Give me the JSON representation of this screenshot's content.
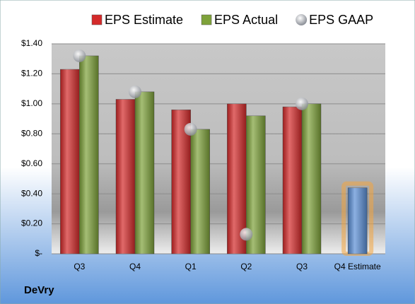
{
  "chart_data": {
    "type": "bar",
    "footer": "DeVry",
    "categories": [
      "Q3",
      "Q4",
      "Q1",
      "Q2",
      "Q3",
      "Q4 Estimate"
    ],
    "series": [
      {
        "name": "EPS Estimate",
        "color": "#d42a2a",
        "values": [
          1.23,
          1.03,
          0.96,
          1.0,
          0.98,
          null
        ]
      },
      {
        "name": "EPS Actual",
        "color": "#7ea23a",
        "values": [
          1.32,
          1.08,
          0.83,
          0.92,
          1.0,
          null
        ]
      },
      {
        "name": "EPS GAAP",
        "color": "#b8bcc4",
        "marker": "circle",
        "values": [
          1.32,
          1.08,
          0.83,
          0.13,
          1.0,
          null
        ]
      }
    ],
    "forecast": {
      "color": "#5b8fd6",
      "glow": "#f4a640",
      "values": [
        null,
        null,
        null,
        null,
        null,
        0.44
      ]
    },
    "ylim": [
      0,
      1.4
    ],
    "yticks": [
      {
        "value": 0,
        "label": "$-"
      },
      {
        "value": 0.2,
        "label": "$0.20"
      },
      {
        "value": 0.4,
        "label": "$0.40"
      },
      {
        "value": 0.6,
        "label": "$0.60"
      },
      {
        "value": 0.8,
        "label": "$0.80"
      },
      {
        "value": 1.0,
        "label": "$1.00"
      },
      {
        "value": 1.2,
        "label": "$1.20"
      },
      {
        "value": 1.4,
        "label": "$1.40"
      }
    ],
    "grid": true
  }
}
